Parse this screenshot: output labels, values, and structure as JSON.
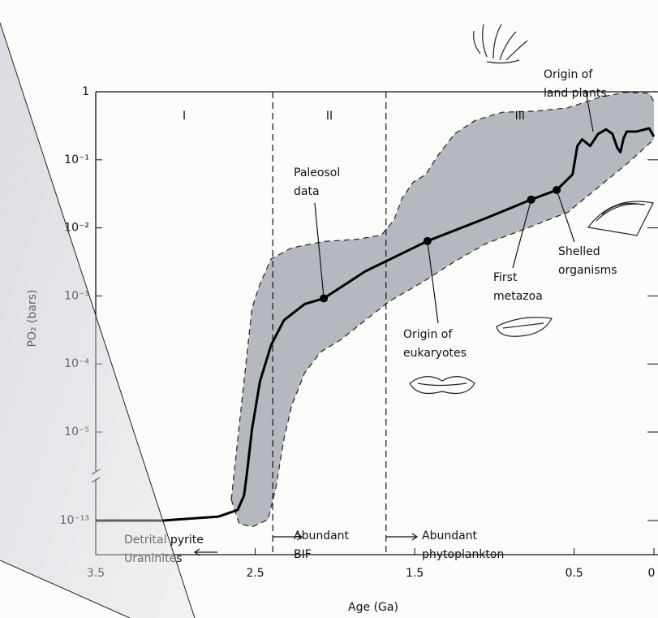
{
  "chart_data": {
    "type": "line",
    "xlabel": "Age (Ga)",
    "ylabel": "PO₂ (bars)",
    "xlim": [
      3.5,
      0
    ],
    "ylim": [
      3e-14,
      1
    ],
    "ylog": true,
    "ybreak": [
      1e-13,
      1e-05
    ],
    "xticks": [
      3.5,
      2.5,
      1.5,
      0.5,
      0
    ],
    "yticks": [
      1,
      {
        "value": 0.1,
        "label": "10⁻¹"
      },
      {
        "value": 0.01,
        "label": "10⁻²"
      },
      {
        "value": 0.001,
        "label": "10⁻³"
      },
      {
        "value": 0.0001,
        "label": "10⁻⁴"
      },
      {
        "value": 1e-05,
        "label": "10⁻⁵"
      },
      {
        "value": 1e-13,
        "label": "10⁻¹³"
      }
    ],
    "series": [
      {
        "color": "#000000",
        "x": [
          3.5,
          3.08,
          2.73,
          2.61,
          2.57,
          2.55,
          2.52,
          2.47,
          2.4,
          2.32,
          2.19,
          2.07,
          1.81,
          1.42,
          1.05,
          0.77,
          0.61,
          0.51,
          0.48,
          0.45,
          0.4,
          0.35,
          0.3,
          0.26,
          0.23,
          0.21,
          0.19,
          0.17,
          0.11,
          0.03,
          0.0
        ],
        "values": [
          1e-13,
          1e-13,
          2.3e-13,
          9e-13,
          1.9e-11,
          3e-09,
          1.1e-05,
          5.6e-05,
          0.00019,
          0.00044,
          0.00076,
          0.00092,
          0.0023,
          0.0064,
          0.014,
          0.026,
          0.036,
          0.061,
          0.16,
          0.2,
          0.16,
          0.24,
          0.28,
          0.24,
          0.15,
          0.13,
          0.21,
          0.26,
          0.26,
          0.29,
          0.22
        ]
      }
    ],
    "band": {
      "color": "#9ea3ab",
      "upper": {
        "x": [
          2.65,
          2.62,
          2.57,
          2.52,
          2.47,
          2.4,
          2.27,
          2.07,
          1.86,
          1.71,
          1.63,
          1.58,
          1.51,
          1.43,
          1.35,
          1.25,
          1.12,
          0.95,
          0.74,
          0.54,
          0.34,
          0.18,
          0.03,
          0.0
        ],
        "values": [
          8e-12,
          8.7e-08,
          5.6e-05,
          0.00066,
          0.0015,
          0.0035,
          0.0051,
          0.0063,
          0.0068,
          0.0078,
          0.013,
          0.027,
          0.047,
          0.061,
          0.12,
          0.24,
          0.38,
          0.5,
          0.52,
          0.58,
          0.83,
          0.98,
          0.95,
          0.72
        ]
      },
      "lower": {
        "x": [
          2.65,
          2.6,
          2.52,
          2.42,
          2.37,
          2.32,
          2.27,
          2.19,
          2.09,
          1.96,
          1.81,
          1.66,
          1.45,
          1.25,
          1.05,
          0.8,
          0.54,
          0.34,
          0.16,
          0.0
        ],
        "values": [
          8e-12,
          9e-14,
          8e-14,
          1.2e-13,
          1e-10,
          2.6e-06,
          2.5e-05,
          7.4e-05,
          0.00015,
          0.00023,
          0.00044,
          0.00083,
          0.0016,
          0.0032,
          0.0059,
          0.0098,
          0.017,
          0.041,
          0.091,
          0.2
        ]
      }
    },
    "points": {
      "x": [
        2.07,
        1.42,
        0.77,
        0.61
      ],
      "values": [
        0.00092,
        0.0064,
        0.026,
        0.036
      ]
    },
    "stages": {
      "boundaries": [
        2.39,
        1.68
      ],
      "labels": [
        "I",
        "II",
        "III"
      ]
    },
    "annotations": [
      [
        "Paleosol",
        "data"
      ],
      [
        "Origin of",
        "eukaryotes"
      ],
      [
        "First",
        "metazoa"
      ],
      [
        "Shelled",
        "organisms"
      ],
      [
        "Origin of",
        "land plants"
      ]
    ],
    "notes": [
      [
        "Detrital pyrite",
        "Uraninites"
      ],
      [
        "Abundant",
        "BIF"
      ],
      [
        "Abundant",
        "phytoplankton"
      ]
    ]
  }
}
